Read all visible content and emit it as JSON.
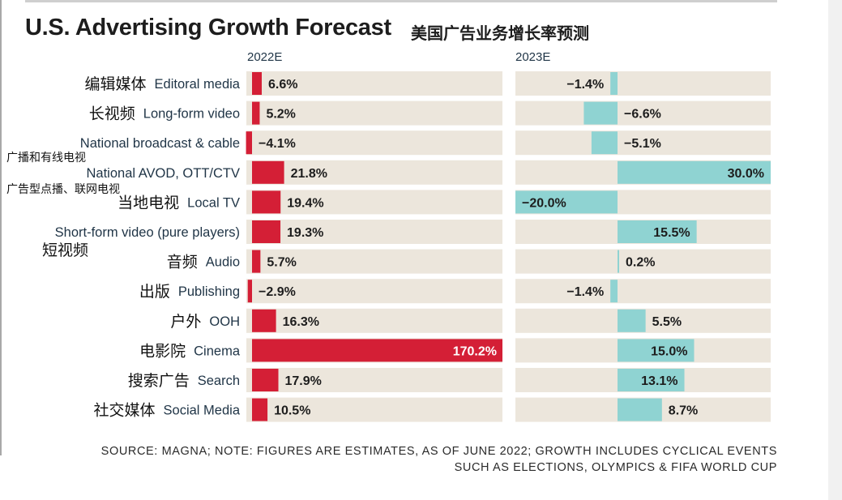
{
  "title": "U.S. Advertising Growth Forecast",
  "subtitle_cn": "美国广告业务增长率预测",
  "colors": {
    "bar_2022": "#d41f36",
    "bar_2023": "#8fd3d2",
    "track": "#ece6dc",
    "label_en": "#1f3446",
    "value_text": "#1d1d1d"
  },
  "chart_data": {
    "type": "bar",
    "orientation": "horizontal",
    "columns": [
      "2022E",
      "2023E"
    ],
    "categories": [
      {
        "en": "Editoral media",
        "cn": "编辑媒体"
      },
      {
        "en": "Long-form video",
        "cn": "长视频"
      },
      {
        "en": "National broadcast & cable",
        "cn": "广播和有线电视"
      },
      {
        "en": "National AVOD, OTT/CTV",
        "cn": "广告型点播、联网电视"
      },
      {
        "en": "Local TV",
        "cn": "当地电视"
      },
      {
        "en": "Short-form video (pure players)",
        "cn": "短视频"
      },
      {
        "en": "Audio",
        "cn": "音频"
      },
      {
        "en": "Publishing",
        "cn": "出版"
      },
      {
        "en": "OOH",
        "cn": "户外"
      },
      {
        "en": "Cinema",
        "cn": "电影院"
      },
      {
        "en": "Search",
        "cn": "搜索广告"
      },
      {
        "en": "Social Media",
        "cn": "社交媒体"
      }
    ],
    "series": [
      {
        "name": "2022E",
        "values": [
          6.6,
          5.2,
          -4.1,
          21.8,
          19.4,
          19.3,
          5.7,
          -2.9,
          16.3,
          170.2,
          17.9,
          10.5
        ],
        "labels": [
          "6.6%",
          "5.2%",
          "−4.1%",
          "21.8%",
          "19.4%",
          "19.3%",
          "5.7%",
          "−2.9%",
          "16.3%",
          "170.2%",
          "17.9%",
          "10.5%"
        ]
      },
      {
        "name": "2023E",
        "values": [
          -1.4,
          -6.6,
          -5.1,
          30.0,
          -20.0,
          15.5,
          0.2,
          -1.4,
          5.5,
          15.0,
          13.1,
          8.7
        ],
        "labels": [
          "−1.4%",
          "−6.6%",
          "−5.1%",
          "30.0%",
          "−20.0%",
          "15.5%",
          "0.2%",
          "−1.4%",
          "5.5%",
          "15.0%",
          "13.1%",
          "8.7%"
        ]
      }
    ]
  },
  "source_lines": [
    "SOURCE: MAGNA; NOTE: FIGURES ARE ESTIMATES, AS OF JUNE 2022; GROWTH INCLUDES CYCLICAL EVENTS",
    "SUCH AS ELECTIONS, OLYMPICS & FIFA WORLD CUP"
  ]
}
